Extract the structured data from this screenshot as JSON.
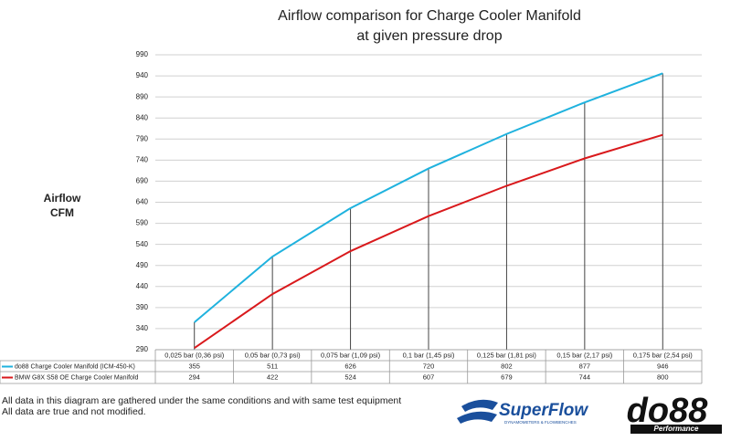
{
  "chart_data": {
    "type": "line",
    "title": "Airflow comparison for Charge Cooler Manifold",
    "subtitle": "at given pressure drop",
    "y_label_lines": [
      "Airflow",
      "CFM"
    ],
    "categories": [
      "0,025 bar (0,36 psi)",
      "0,05 bar (0,73 psi)",
      "0,075 bar (1,09 psi)",
      "0,1 bar (1,45 psi)",
      "0,125 bar (1,81 psi)",
      "0,15 bar (2,17 psi)",
      "0,175 bar (2,54 psi)"
    ],
    "series": [
      {
        "name": "do88 Charge Cooler Manifold (ICM-450-K)",
        "color": "#1fb2de",
        "values": [
          355,
          511,
          626,
          720,
          802,
          877,
          946
        ]
      },
      {
        "name": "BMW G8X S58 OE Charge Cooler Manifold",
        "color": "#d9191c",
        "values": [
          294,
          422,
          524,
          607,
          679,
          744,
          800
        ]
      }
    ],
    "ylim": [
      290,
      990
    ],
    "yticks": [
      290,
      340,
      390,
      440,
      490,
      540,
      590,
      640,
      690,
      740,
      790,
      840,
      890,
      940,
      990
    ],
    "grid": true,
    "notes": [
      "All data in this diagram are gathered under the same conditions and with same test equipment",
      "All data are true and not modified."
    ],
    "logos": {
      "superflow": "SuperFlow",
      "superflow_tagline": "DYNAMOMETERS & FLOWBENCHES",
      "do88": "do88",
      "do88_tagline": "Performance"
    }
  }
}
